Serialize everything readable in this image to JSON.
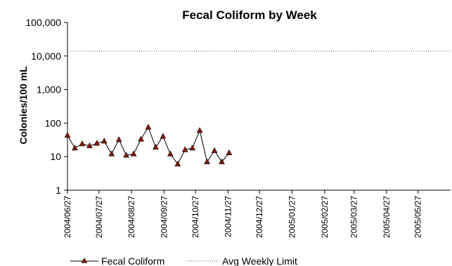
{
  "chart_data": {
    "type": "line",
    "title": "Fecal Coliform by Week",
    "ylabel": "Colonies/100 mL",
    "xlabel": "",
    "yscale": "log",
    "ylim": [
      1,
      100000
    ],
    "y_ticks": [
      "1",
      "10",
      "100",
      "1,000",
      "10,000",
      "100,000"
    ],
    "x_ticks": [
      "2004/06/27",
      "2004/07/27",
      "2004/08/27",
      "2004/09/27",
      "2004/10/27",
      "2004/11/27",
      "2004/12/27",
      "2005/01/27",
      "2005/02/27",
      "2005/03/27",
      "2005/04/27",
      "2005/05/27"
    ],
    "xlim": [
      "2004/06/27",
      "2005/06/27"
    ],
    "grid": false,
    "legend_position": "bottom",
    "series": [
      {
        "name": "Fecal Coliform",
        "color": "#7b1a0e",
        "marker": "triangle",
        "x": [
          "2004/06/27",
          "2004/07/04",
          "2004/07/11",
          "2004/07/18",
          "2004/07/25",
          "2004/08/01",
          "2004/08/08",
          "2004/08/15",
          "2004/08/22",
          "2004/08/29",
          "2004/09/05",
          "2004/09/12",
          "2004/09/19",
          "2004/09/26",
          "2004/10/03",
          "2004/10/10",
          "2004/10/17",
          "2004/10/24",
          "2004/10/31",
          "2004/11/07",
          "2004/11/14",
          "2004/11/21",
          "2004/11/28"
        ],
        "values": [
          43,
          18,
          24,
          21,
          25,
          29,
          12,
          32,
          11,
          12,
          33,
          75,
          19,
          40,
          12,
          6,
          16,
          18,
          60,
          7,
          15,
          7,
          13
        ]
      },
      {
        "name": "Avg Weekly Limit",
        "color": "#555555",
        "style": "dotted",
        "values": [
          14000
        ]
      }
    ]
  }
}
